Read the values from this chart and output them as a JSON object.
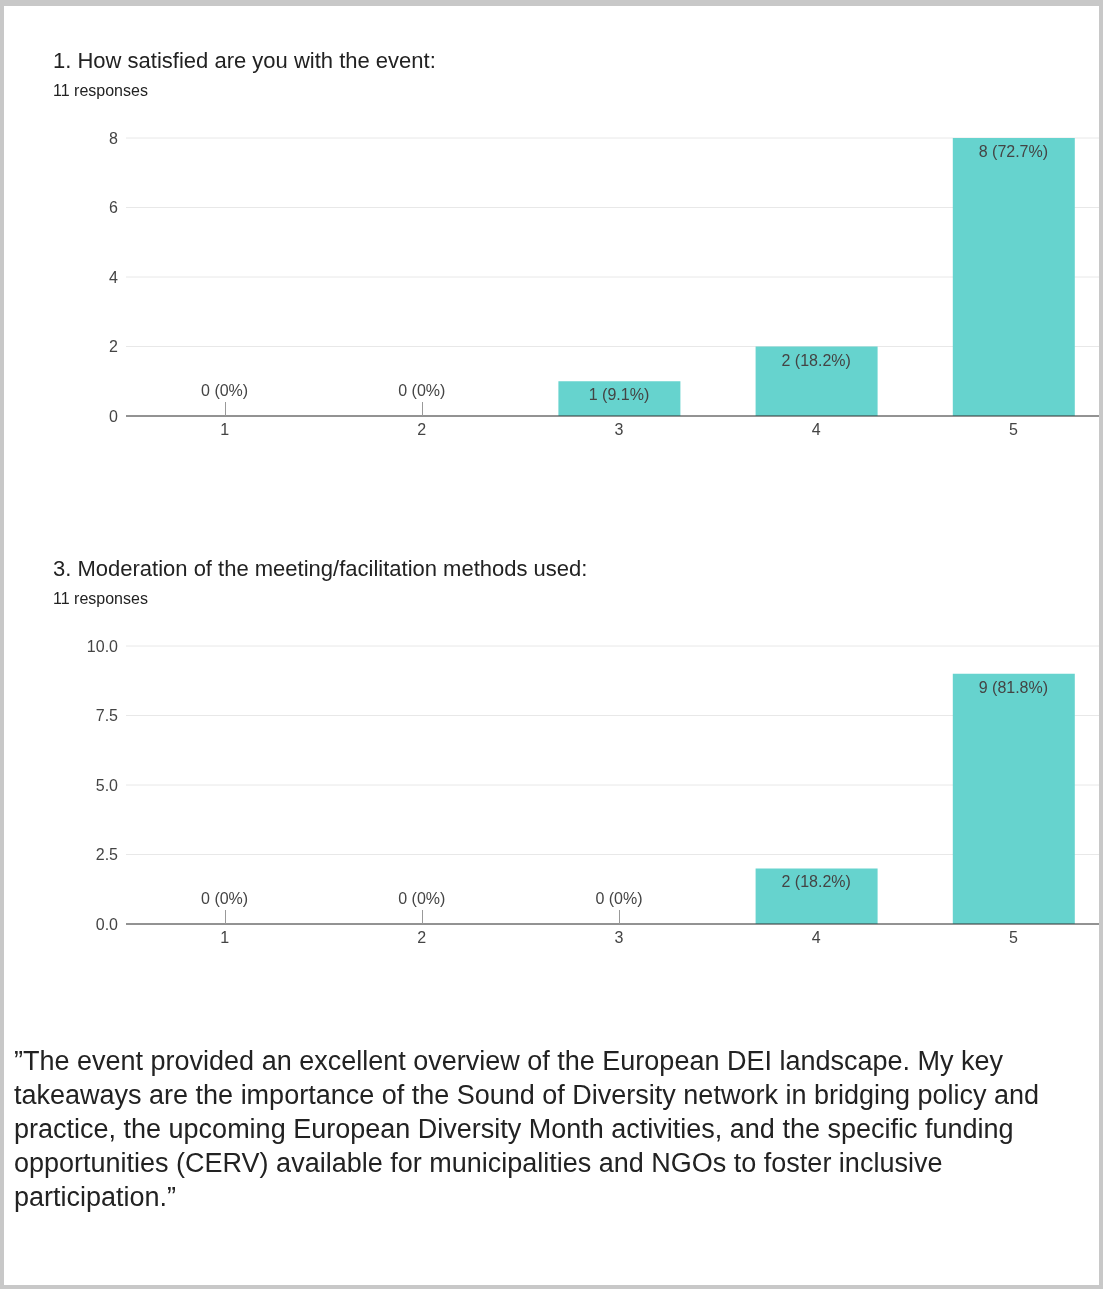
{
  "chart_data": [
    {
      "type": "bar",
      "title": "1. How satisfied are you with the event:",
      "subtitle": "11 responses",
      "categories": [
        "1",
        "2",
        "3",
        "4",
        "5"
      ],
      "values": [
        0,
        0,
        1,
        2,
        8
      ],
      "color": "#66d3ce",
      "value_labels": [
        "0 (0%)",
        "0 (0%)",
        "1 (9.1%)",
        "2 (18.2%)",
        "8 (72.7%)"
      ],
      "ylim": [
        0,
        8
      ],
      "yticks": [
        0,
        2,
        4,
        6,
        8
      ],
      "grid": "y",
      "legend": false
    },
    {
      "type": "bar",
      "title": "3. Moderation of the meeting/facilitation methods used:",
      "subtitle": "11 responses",
      "categories": [
        "1",
        "2",
        "3",
        "4",
        "5"
      ],
      "values": [
        0,
        0,
        0,
        2,
        9
      ],
      "color": "#66d3ce",
      "value_labels": [
        "0 (0%)",
        "0 (0%)",
        "0 (0%)",
        "2 (18.2%)",
        "9 (81.8%)"
      ],
      "ylim": [
        0,
        10
      ],
      "yticks": [
        {
          "value": 0,
          "label": "0.0"
        },
        {
          "value": 2.5,
          "label": "2.5"
        },
        {
          "value": 5,
          "label": "5.0"
        },
        {
          "value": 7.5,
          "label": "7.5"
        },
        {
          "value": 10,
          "label": "10.0"
        }
      ],
      "grid": "y",
      "legend": false,
      "annotations": [
        "”The event provided an excellent overview of the European DEI landscape. My key takeaways are the importance of the Sound of Diversity network in bridging policy and practice, the upcoming European Diversity Month activities, and the specific funding opportunities (CERV) available for municipalities and NGOs to foster inclusive participation.”"
      ]
    }
  ]
}
